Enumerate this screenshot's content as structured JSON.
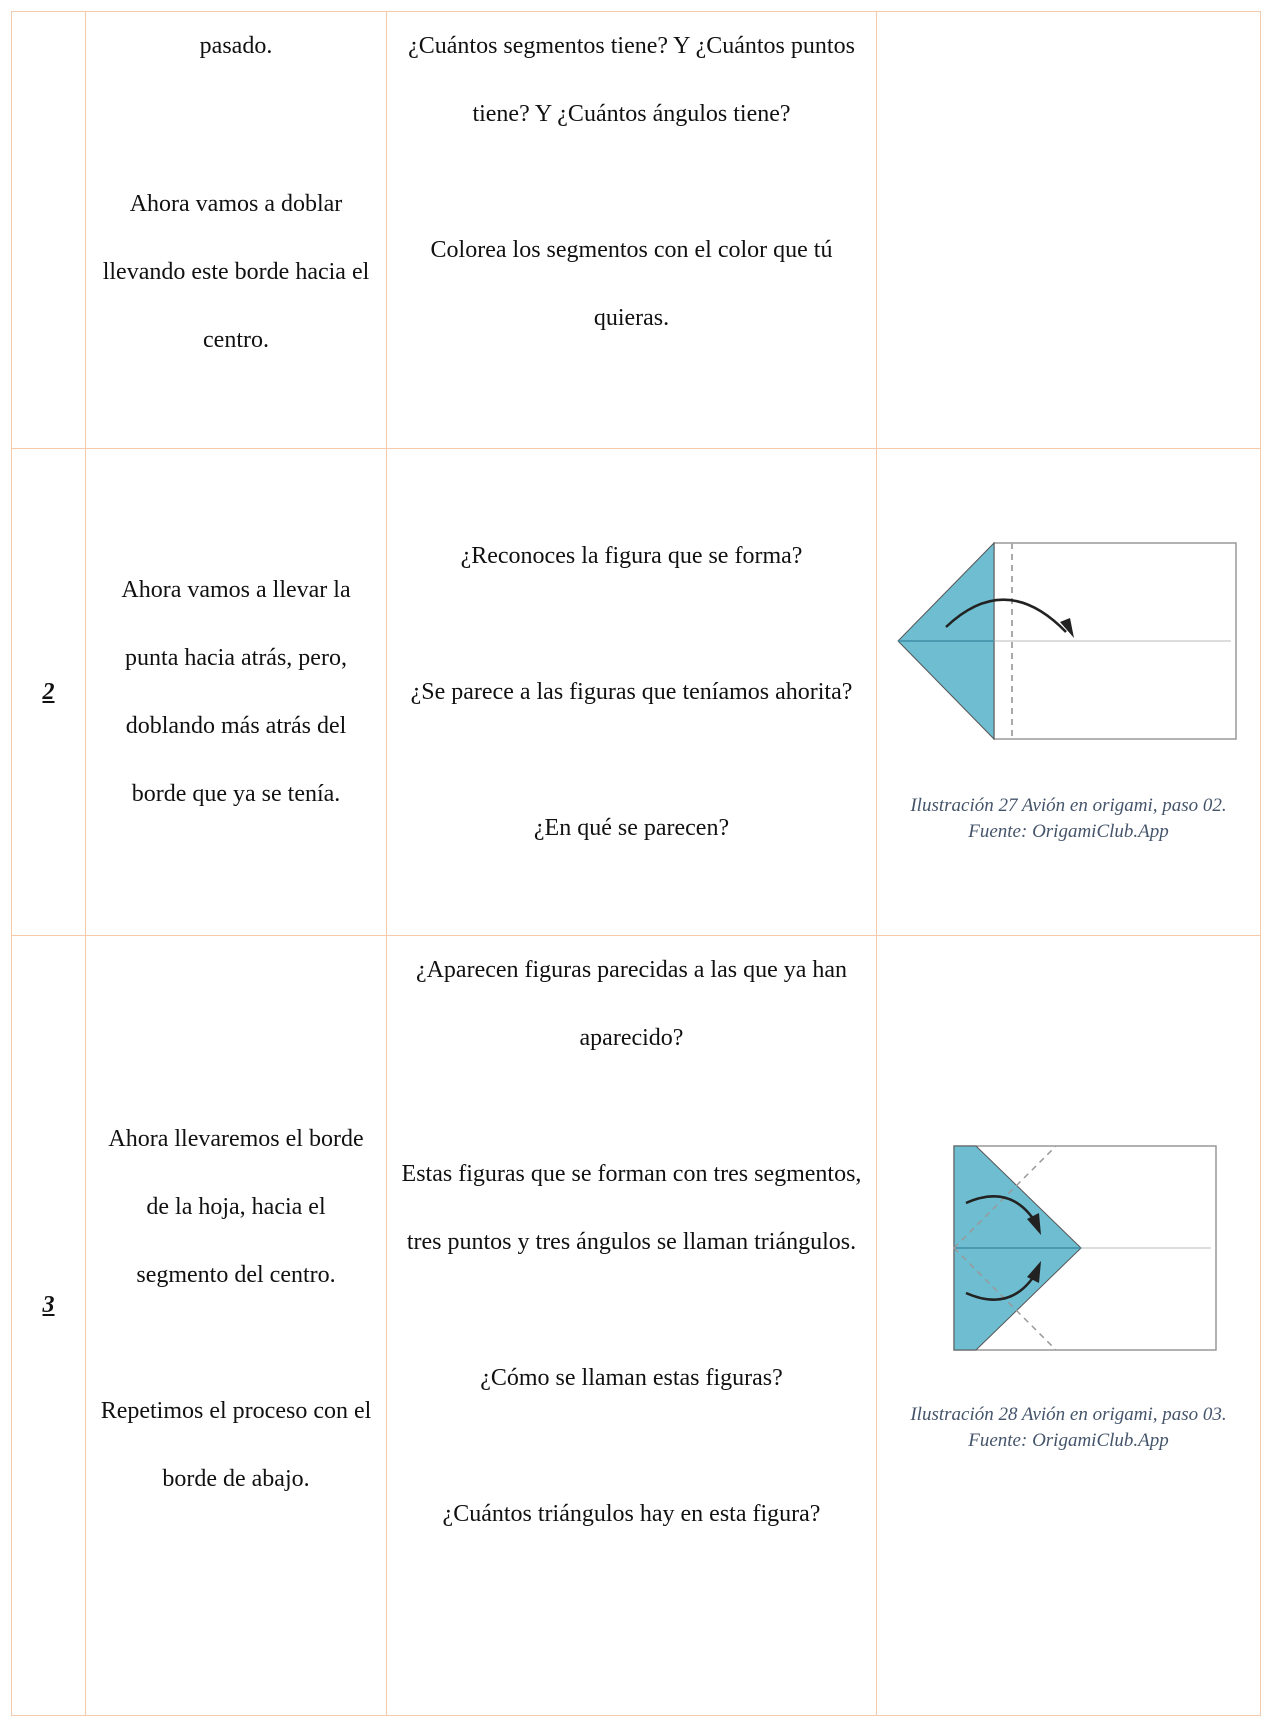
{
  "table": {
    "rows": [
      {
        "number": null,
        "step": [
          "pasado.",
          "Ahora vamos a doblar llevando este borde hacia el centro."
        ],
        "questions": [
          "¿Cuántos segmentos tiene? Y ¿Cuántos puntos tiene? Y ¿Cuántos ángulos tiene?",
          "Colorea los segmentos con el color que tú quieras."
        ],
        "caption": null
      },
      {
        "number": "2",
        "step": [
          "Ahora vamos a llevar la punta hacia atrás, pero, doblando más atrás del borde que ya se tenía."
        ],
        "questions": [
          "¿Reconoces la figura que se forma?",
          "¿Se parece a las figuras que teníamos ahorita?",
          "¿En qué se parecen?"
        ],
        "caption": "Ilustración 27 Avión en origami, paso 02. Fuente: OrigamiClub.App"
      },
      {
        "number": "3",
        "step": [
          "Ahora llevaremos el borde de la hoja, hacia el segmento del centro.",
          "Repetimos el proceso con el borde de abajo."
        ],
        "questions": [
          "¿Aparecen figuras parecidas a las que ya han aparecido?",
          "Estas figuras que se forman con tres segmentos, tres puntos y tres ángulos se llaman triángulos.",
          "¿Cómo se llaman estas figuras?",
          "¿Cuántos triángulos hay en esta figura?"
        ],
        "caption": "Ilustración 28 Avión en origami, paso 03. Fuente: OrigamiClub.App"
      }
    ]
  }
}
